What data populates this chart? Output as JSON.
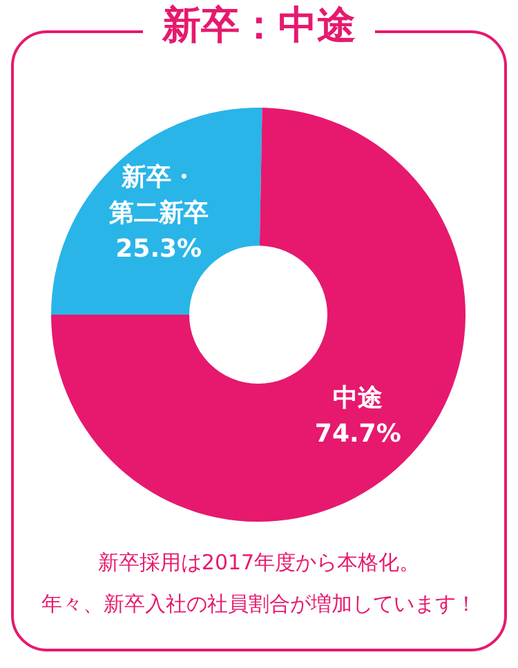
{
  "chart_data": {
    "type": "donut",
    "title": "新卒：中途",
    "categories": [
      "新卒・第二新卒",
      "中途"
    ],
    "values": [
      25.3,
      74.7
    ],
    "colors": [
      "#29b5e8",
      "#e6196e"
    ],
    "value_labels": [
      "25.3%",
      "74.7%"
    ],
    "legend": false,
    "annotations": [
      "新卒採用は2017年度から本格化。",
      "年々、新卒入社の社員割合が増加しています！"
    ]
  }
}
